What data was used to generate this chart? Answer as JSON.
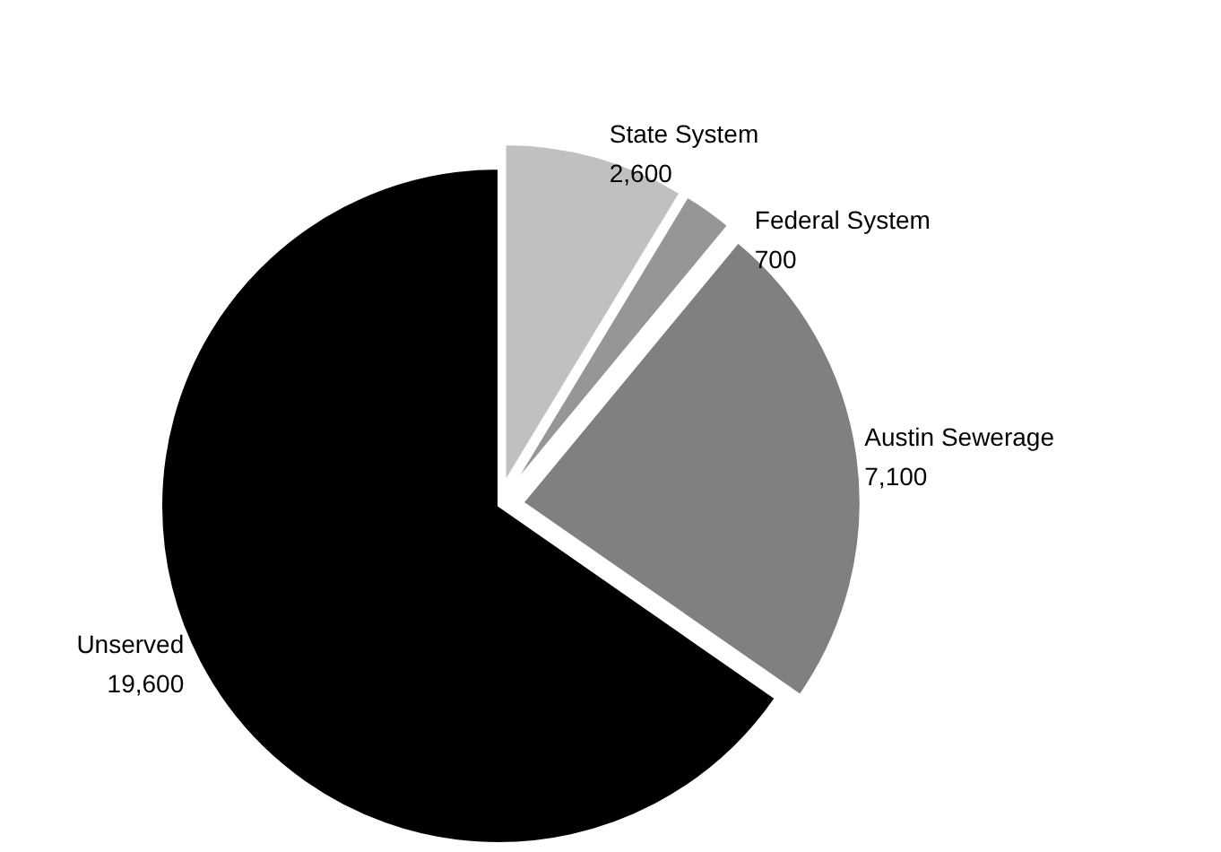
{
  "chart_data": {
    "type": "pie",
    "categories": [
      "State System",
      "Federal System",
      "Austin Sewerage",
      "Unserved"
    ],
    "values": [
      2600,
      700,
      7100,
      19600
    ],
    "value_labels": [
      "2,600",
      "700",
      "7,100",
      "19,600"
    ],
    "colors": [
      "#c0c0c0",
      "#969696",
      "#808080",
      "#000000"
    ],
    "legend": false
  }
}
